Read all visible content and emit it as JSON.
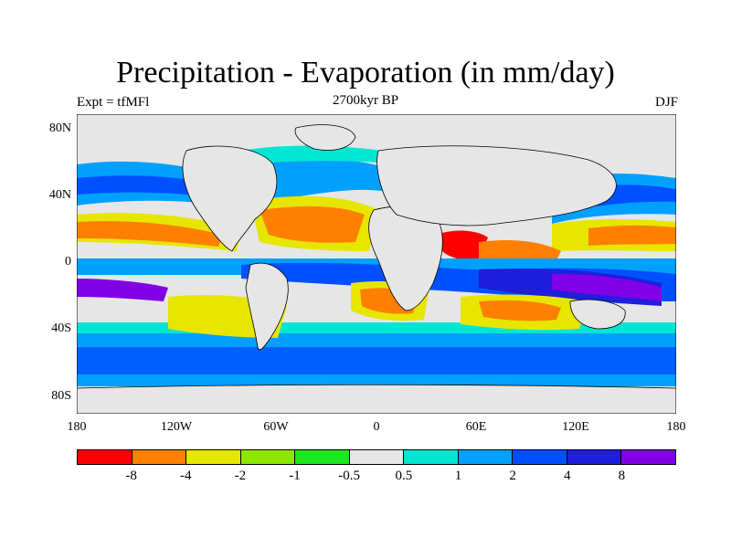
{
  "title": "Precipitation - Evaporation (in mm/day)",
  "subtitle": "2700kyr BP",
  "experiment_label": "Expt = tfMFl",
  "season_label": "DJF",
  "y_axis_ticks": [
    "80N",
    "40N",
    "0",
    "40S",
    "80S"
  ],
  "x_axis_ticks": [
    "180",
    "120W",
    "60W",
    "0",
    "60E",
    "120E",
    "180"
  ],
  "colorbar": {
    "colors": [
      "#ff0000",
      "#ff8000",
      "#e6e600",
      "#8ee600",
      "#1ee61e",
      "#e6e6e6",
      "#00e6d2",
      "#00a0ff",
      "#0050ff",
      "#1e1edc",
      "#8200e6"
    ],
    "labels": [
      "-8",
      "-4",
      "-2",
      "-1",
      "-0.5",
      "0.5",
      "1",
      "2",
      "4",
      "8"
    ]
  }
}
